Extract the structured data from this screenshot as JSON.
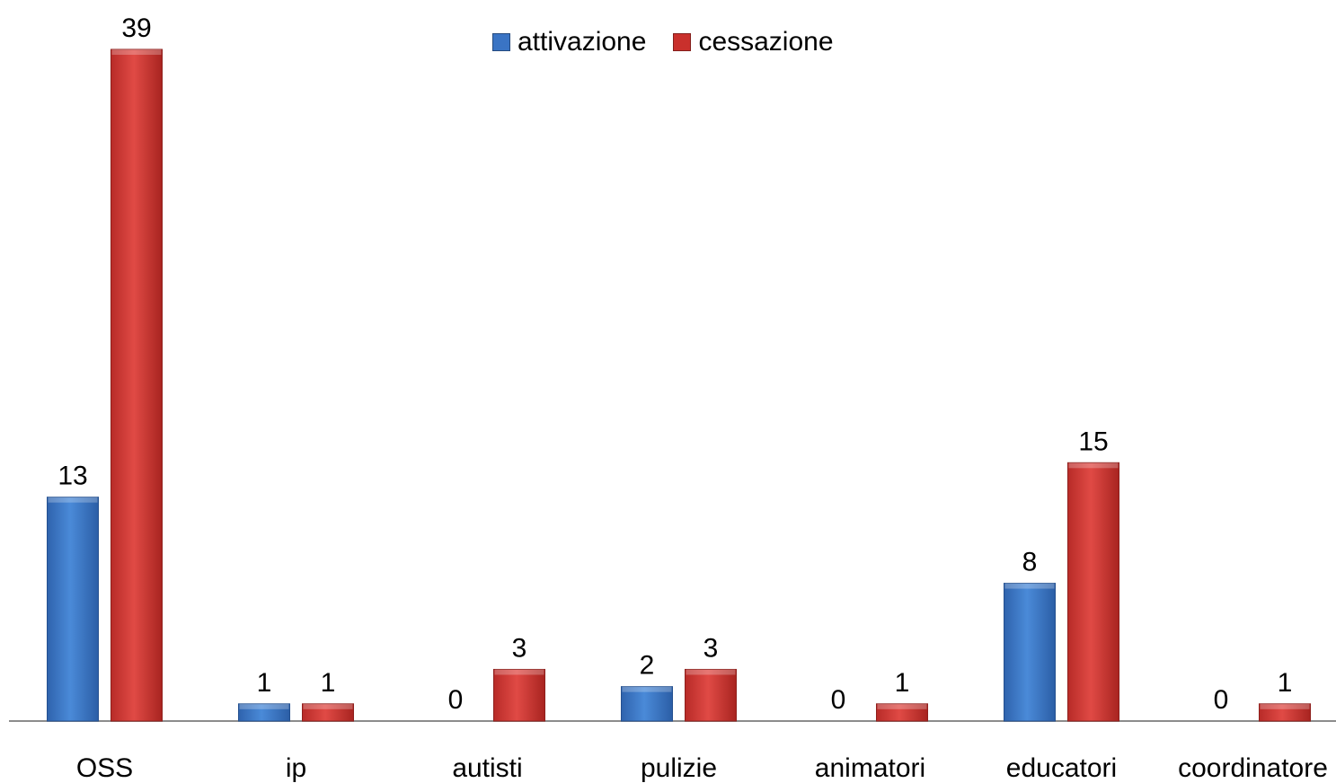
{
  "chart_data": {
    "type": "bar",
    "categories": [
      "OSS",
      "ip",
      "autisti",
      "pulizie",
      "animatori",
      "educatori",
      "coordinatore"
    ],
    "series": [
      {
        "name": "attivazione",
        "color": "#3a74c4",
        "values": [
          13,
          1,
          0,
          2,
          0,
          8,
          0
        ]
      },
      {
        "name": "cessazione",
        "color": "#c9302c",
        "values": [
          39,
          1,
          3,
          3,
          1,
          15,
          1
        ]
      }
    ],
    "ylim": [
      0,
      39
    ],
    "legend_position": "top-center",
    "grid": false
  }
}
